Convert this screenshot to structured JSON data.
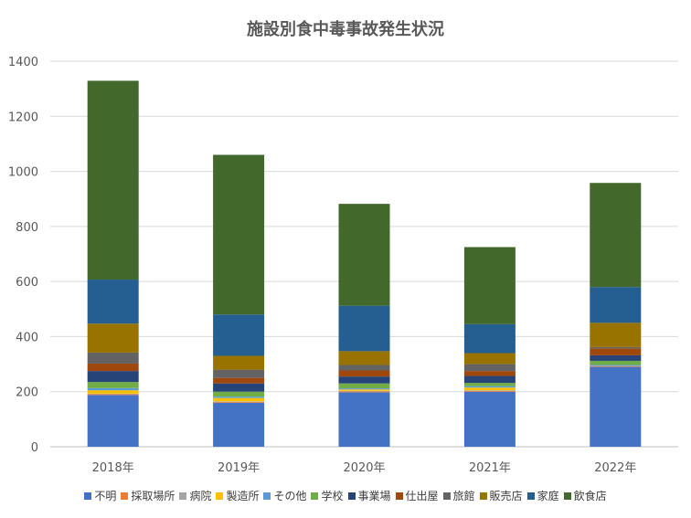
{
  "chart_data": {
    "type": "bar",
    "stacked": true,
    "title": "施設別食中毒事故発生状況",
    "xlabel": "",
    "ylabel": "",
    "ylim": [
      0,
      1400
    ],
    "yticks": [
      0,
      200,
      400,
      600,
      800,
      1000,
      1200,
      1400
    ],
    "grid": true,
    "legend_position": "bottom",
    "categories": [
      "2018年",
      "2019年",
      "2020年",
      "2021年",
      "2022年"
    ],
    "series": [
      {
        "name": "不明",
        "color": "#4472C4",
        "values": [
          188,
          160,
          198,
          200,
          290
        ]
      },
      {
        "name": "採取場所",
        "color": "#ED7D31",
        "values": [
          3,
          3,
          3,
          3,
          2
        ]
      },
      {
        "name": "病院",
        "color": "#A5A5A5",
        "values": [
          2,
          2,
          2,
          2,
          2
        ]
      },
      {
        "name": "製造所",
        "color": "#FFC000",
        "values": [
          12,
          12,
          5,
          10,
          0
        ]
      },
      {
        "name": "その他",
        "color": "#5B9BD5",
        "values": [
          8,
          5,
          4,
          5,
          3
        ]
      },
      {
        "name": "学校",
        "color": "#70AD47",
        "values": [
          22,
          18,
          18,
          12,
          15
        ]
      },
      {
        "name": "事業場",
        "color": "#264478",
        "values": [
          40,
          30,
          25,
          25,
          20
        ]
      },
      {
        "name": "仕出屋",
        "color": "#9E480E",
        "values": [
          27,
          20,
          22,
          18,
          25
        ]
      },
      {
        "name": "旅館",
        "color": "#636363",
        "values": [
          40,
          30,
          20,
          25,
          5
        ]
      },
      {
        "name": "販売店",
        "color": "#997300",
        "values": [
          105,
          50,
          50,
          40,
          88
        ]
      },
      {
        "name": "家庭",
        "color": "#255E91",
        "values": [
          160,
          150,
          165,
          105,
          130
        ]
      },
      {
        "name": "飲食店",
        "color": "#43682B",
        "values": [
          722,
          580,
          370,
          280,
          378
        ]
      }
    ]
  }
}
